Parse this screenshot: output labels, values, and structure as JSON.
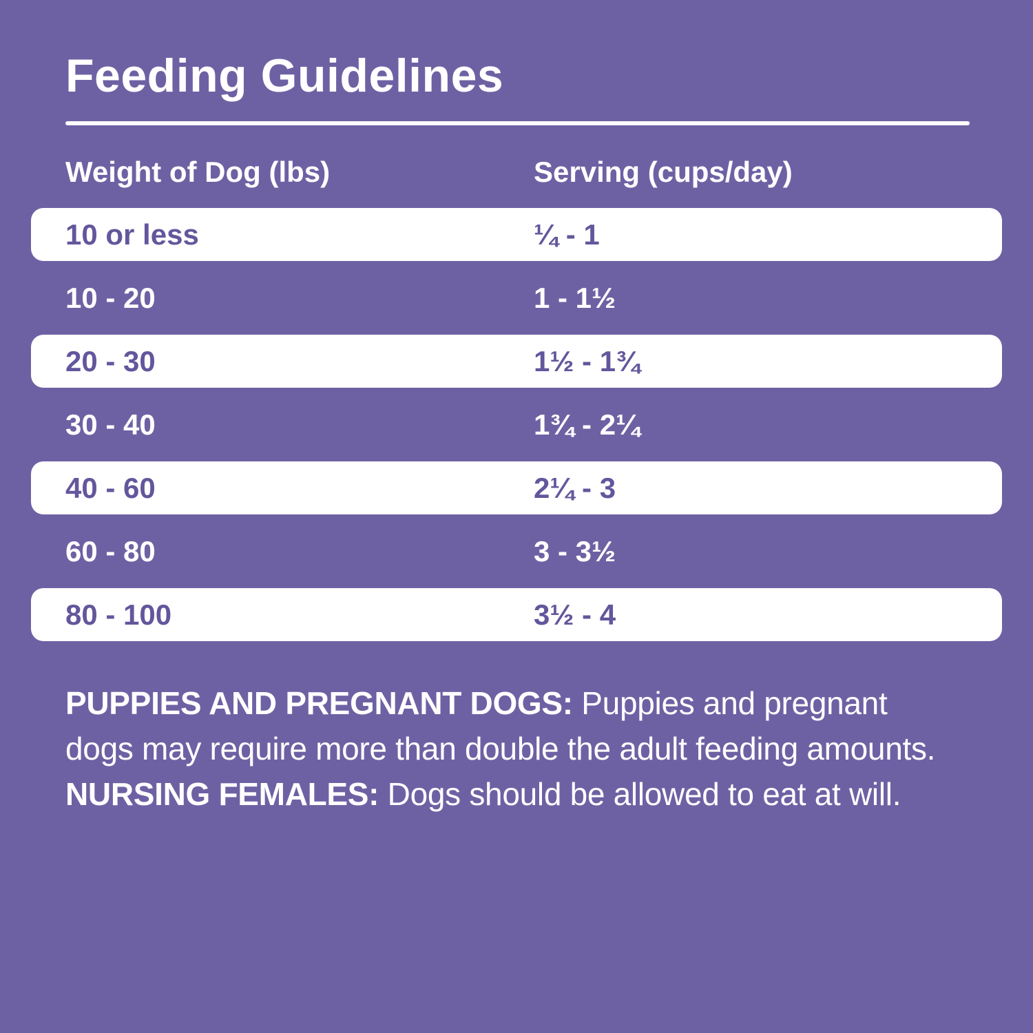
{
  "title": "Feeding Guidelines",
  "table": {
    "col_weight": "Weight of Dog (lbs)",
    "col_serving": "Serving (cups/day)",
    "rows": [
      {
        "weight": "10 or less",
        "serving": "¼ - 1",
        "highlight": true
      },
      {
        "weight": "10 - 20",
        "serving": "1 - 1½",
        "highlight": false
      },
      {
        "weight": "20 - 30",
        "serving": "1½ - 1¾",
        "highlight": true
      },
      {
        "weight": "30 - 40",
        "serving": "1¾ - 2¼",
        "highlight": false
      },
      {
        "weight": "40 - 60",
        "serving": "2¼ - 3",
        "highlight": true
      },
      {
        "weight": "60 - 80",
        "serving": "3 - 3½",
        "highlight": false
      },
      {
        "weight": "80 - 100",
        "serving": "3½ - 4",
        "highlight": true
      }
    ]
  },
  "note": {
    "segments": [
      {
        "text": "PUPPIES AND PREGNANT DOGS:",
        "bold": true
      },
      {
        "text": " Puppies and pregnant dogs may require more than double the adult feeding amounts. ",
        "bold": false
      },
      {
        "text": "NURSING FEMALES:",
        "bold": true
      },
      {
        "text": " Dogs should be allowed to eat at will.",
        "bold": false
      }
    ]
  },
  "colors": {
    "background": "#6E61A3",
    "accent_text": "#64569C",
    "row_highlight": "#FFFFFF"
  }
}
